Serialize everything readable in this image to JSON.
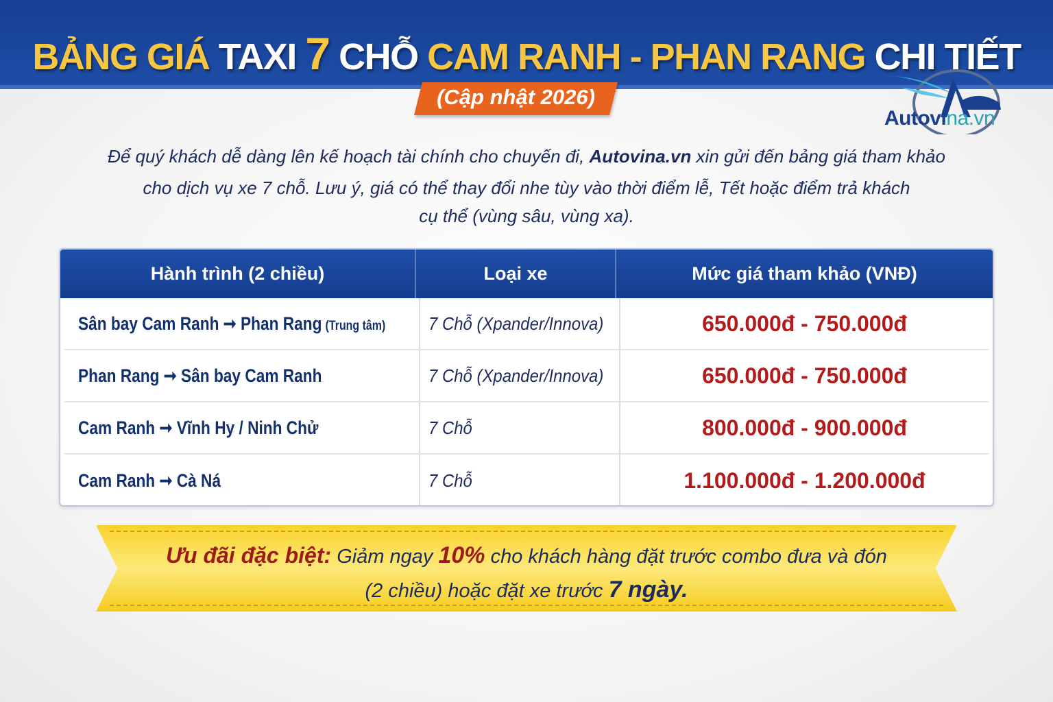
{
  "header": {
    "title_parts": [
      "BẢNG GIÁ",
      "TAXI",
      "7",
      "CHỖ",
      "CAM RANH - PHAN RANG",
      "CHI TIẾT"
    ],
    "badge": "(Cập nhật 2026)"
  },
  "logo": {
    "text_main": "Autovi",
    "text_accent": "na.vn"
  },
  "intro": {
    "line1_a": "Để quý khách dễ dàng lên kế hoạch tài chính cho chuyến đi, ",
    "line1_brand": "Autovina.vn",
    "line1_b": " xin gửi đến bảng giá tham khảo",
    "line2": "cho dịch vụ xe 7 chỗ. Lưu ý, giá có thể thay đổi nhe tùy vào thời điểm lễ, Tết hoặc điểm trả khách",
    "line3": "cụ thể (vùng sâu, vùng xa)."
  },
  "table": {
    "headers": [
      "Hành trình (2 chiều)",
      "Loại xe",
      "Mức giá tham khảo (VNĐ)"
    ],
    "rows": [
      {
        "route": "Sân bay Cam Ranh ➞ Phan Rang",
        "note": "(Trung tâm)",
        "car": "7 Chỗ (Xpander/Innova)",
        "price": "650.000đ - 750.000đ"
      },
      {
        "route": "Phan Rang ➞ Sân bay Cam Ranh",
        "note": "",
        "car": "7 Chỗ (Xpander/Innova)",
        "price": "650.000đ - 750.000đ"
      },
      {
        "route": "Cam Ranh ➞ Vĩnh Hy / Ninh Chử",
        "note": "",
        "car": "7 Chỗ",
        "price": "800.000đ - 900.000đ"
      },
      {
        "route": "Cam Ranh ➞ Cà Ná",
        "note": "",
        "car": "7 Chỗ",
        "price": "1.100.000đ - 1.200.000đ"
      }
    ]
  },
  "promo": {
    "label": "Ưu đãi đặc biệt:",
    "a": " Giảm ngay ",
    "pct": "10%",
    "b": " cho khách hàng đặt trước combo đưa và đón",
    "c": "(2 chiều) hoặc đặt xe trước ",
    "days": "7 ngày."
  },
  "colors": {
    "header_blue": "#1a469d",
    "title_yellow": "#f7c744",
    "badge_orange": "#e8641e",
    "price_red": "#b31b1b",
    "promo_yellow": "#f8d22c"
  }
}
